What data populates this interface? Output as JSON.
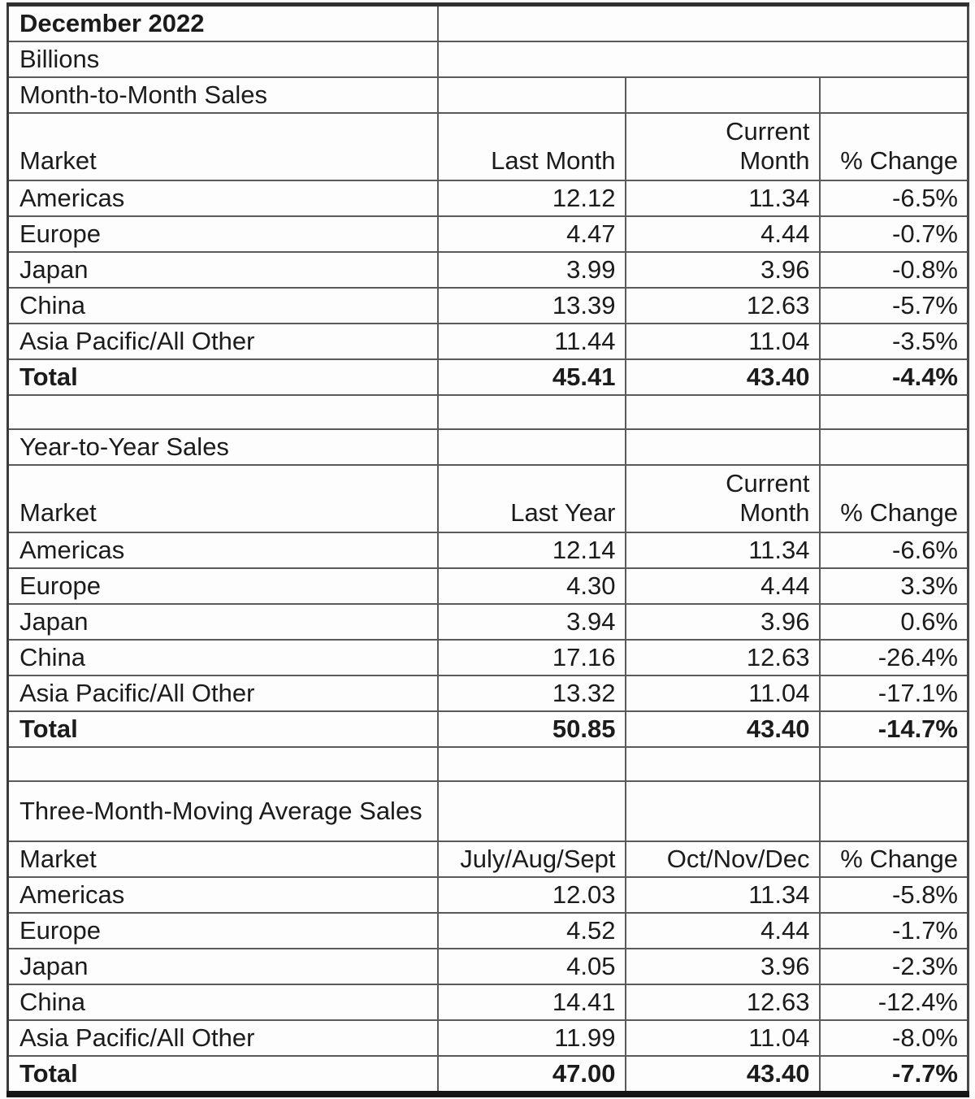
{
  "report": {
    "title": "December 2022",
    "units": "Billions"
  },
  "sections": [
    {
      "title": "Month-to-Month Sales",
      "col_market": "Market",
      "col_prev": "Last Month",
      "col_current_line1": "Current",
      "col_current_line2": "Month",
      "col_change": "% Change",
      "rows": [
        {
          "market": "Americas",
          "prev": "12.12",
          "current": "11.34",
          "change": "-6.5%"
        },
        {
          "market": "Europe",
          "prev": "4.47",
          "current": "4.44",
          "change": "-0.7%"
        },
        {
          "market": "Japan",
          "prev": "3.99",
          "current": "3.96",
          "change": "-0.8%"
        },
        {
          "market": "China",
          "prev": "13.39",
          "current": "12.63",
          "change": "-5.7%"
        },
        {
          "market": "Asia Pacific/All Other",
          "prev": "11.44",
          "current": "11.04",
          "change": "-3.5%"
        }
      ],
      "total": {
        "label": "Total",
        "prev": "45.41",
        "current": "43.40",
        "change": "-4.4%"
      }
    },
    {
      "title": "Year-to-Year Sales",
      "col_market": "Market",
      "col_prev": "Last Year",
      "col_current_line1": "Current",
      "col_current_line2": "Month",
      "col_change": "% Change",
      "rows": [
        {
          "market": "Americas",
          "prev": "12.14",
          "current": "11.34",
          "change": "-6.6%"
        },
        {
          "market": "Europe",
          "prev": "4.30",
          "current": "4.44",
          "change": "3.3%"
        },
        {
          "market": "Japan",
          "prev": "3.94",
          "current": "3.96",
          "change": "0.6%"
        },
        {
          "market": "China",
          "prev": "17.16",
          "current": "12.63",
          "change": "-26.4%"
        },
        {
          "market": "Asia Pacific/All Other",
          "prev": "13.32",
          "current": "11.04",
          "change": "-17.1%"
        }
      ],
      "total": {
        "label": "Total",
        "prev": "50.85",
        "current": "43.40",
        "change": "-14.7%"
      }
    },
    {
      "title": "Three-Month-Moving Average Sales",
      "col_market": "Market",
      "col_prev": "July/Aug/Sept",
      "col_current": "Oct/Nov/Dec",
      "col_change": "% Change",
      "rows": [
        {
          "market": "Americas",
          "prev": "12.03",
          "current": "11.34",
          "change": "-5.8%"
        },
        {
          "market": "Europe",
          "prev": "4.52",
          "current": "4.44",
          "change": "-1.7%"
        },
        {
          "market": "Japan",
          "prev": "4.05",
          "current": "3.96",
          "change": "-2.3%"
        },
        {
          "market": "China",
          "prev": "14.41",
          "current": "12.63",
          "change": "-12.4%"
        },
        {
          "market": "Asia Pacific/All Other",
          "prev": "11.99",
          "current": "11.04",
          "change": "-8.0%"
        }
      ],
      "total": {
        "label": "Total",
        "prev": "47.00",
        "current": "43.40",
        "change": "-7.7%"
      }
    }
  ]
}
